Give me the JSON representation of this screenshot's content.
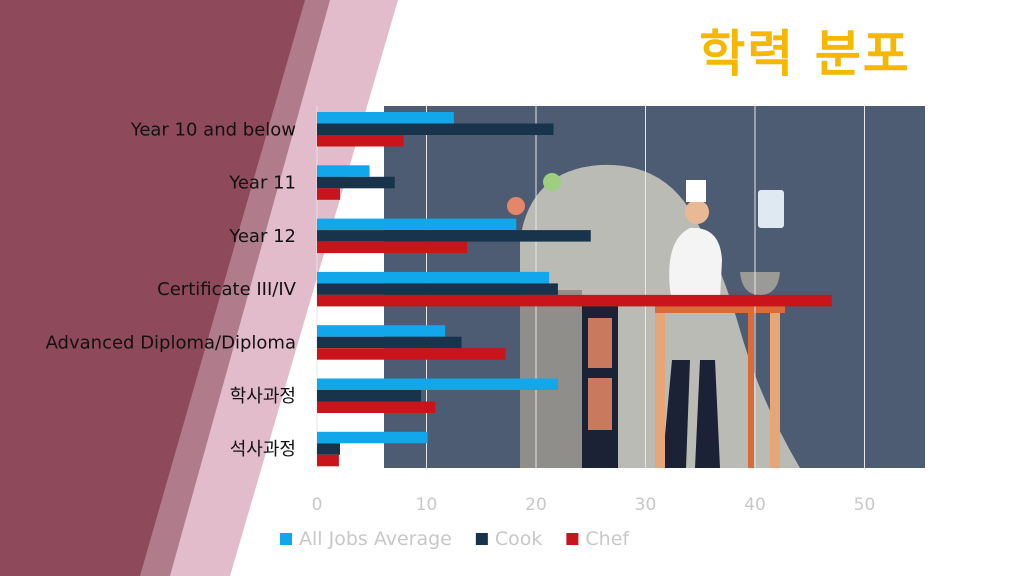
{
  "slide": {
    "title": "학력 분포"
  },
  "colors": {
    "panel_dark": "#4d5b73",
    "band_maroon": "#8e4a5b",
    "band_rose": "#b07c8b",
    "band_pink": "#e2bccb",
    "title_gold": "#f5b800"
  },
  "chart_data": {
    "type": "bar",
    "orientation": "horizontal",
    "title": "학력 분포",
    "categories": [
      "Year 10 and below",
      "Year 11",
      "Year 12",
      "Certificate III/IV",
      "Advanced Diploma/Diploma",
      "학사과정",
      "석사과정"
    ],
    "series": [
      {
        "name": "All Jobs Average",
        "color": "#12a7ea",
        "values": [
          12.5,
          4.8,
          18.2,
          21.2,
          11.7,
          22.0,
          10.1
        ]
      },
      {
        "name": "Cook",
        "color": "#17344c",
        "values": [
          21.6,
          7.1,
          25.0,
          22.0,
          13.2,
          9.5,
          2.1
        ]
      },
      {
        "name": "Chef",
        "color": "#c8141a",
        "values": [
          7.9,
          2.1,
          13.7,
          47.0,
          17.2,
          10.8,
          2.0
        ]
      }
    ],
    "xlim": [
      0,
      55
    ],
    "xticks": [
      "0",
      "10",
      "20",
      "30",
      "40",
      "50"
    ],
    "xlabel": "",
    "ylabel": "",
    "grid": true,
    "legend_position": "bottom"
  }
}
